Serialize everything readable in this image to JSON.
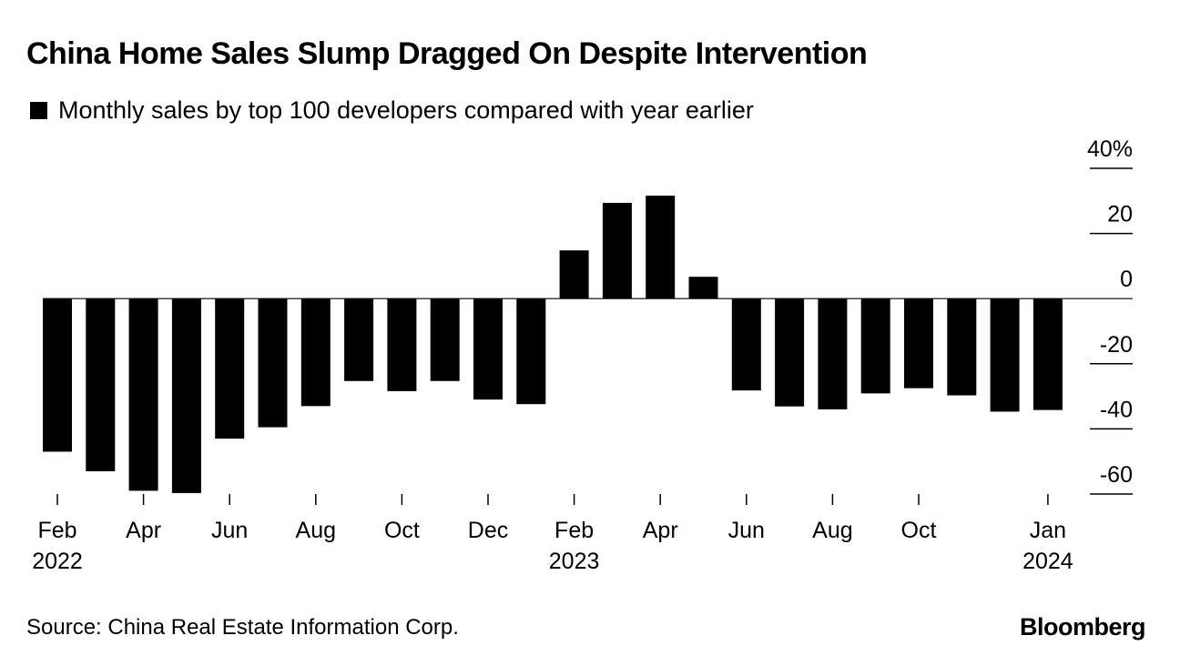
{
  "header": {
    "title": "China Home Sales Slump Dragged On Despite Intervention"
  },
  "footer": {
    "source": "Source: China Real Estate Information Corp.",
    "logo": "Bloomberg"
  },
  "colors": {
    "bars": "#000000",
    "background": "#ffffff"
  },
  "chart_data": {
    "type": "bar",
    "title": "China Home Sales Slump Dragged On Despite Intervention",
    "legend": [
      "Monthly sales by top 100 developers compared with year earlier"
    ],
    "legend_position": "top-left",
    "y_axis_position": "right",
    "categories": [
      "Feb 2022",
      "Mar 2022",
      "Apr 2022",
      "May 2022",
      "Jun 2022",
      "Jul 2022",
      "Aug 2022",
      "Sep 2022",
      "Oct 2022",
      "Nov 2022",
      "Dec 2022",
      "Jan 2023",
      "Feb 2023",
      "Mar 2023",
      "Apr 2023",
      "May 2023",
      "Jun 2023",
      "Jul 2023",
      "Aug 2023",
      "Sep 2023",
      "Oct 2023",
      "Nov 2023",
      "Dec 2023",
      "Jan 2024"
    ],
    "series": [
      {
        "name": "Monthly sales by top 100 developers compared with year earlier",
        "values": [
          -47,
          -53,
          -59,
          -59.7,
          -43,
          -39.5,
          -33,
          -25.3,
          -28.4,
          -25.3,
          -31,
          -32.4,
          14.8,
          29.4,
          31.6,
          6.7,
          -28.2,
          -33.1,
          -34,
          -29.1,
          -27.5,
          -29.7,
          -34.7,
          -34.2
        ]
      }
    ],
    "ylim": [
      -60,
      40
    ],
    "yticks": [
      40,
      20,
      0,
      -20,
      -40,
      -60
    ],
    "ytick_labels": [
      "40%",
      "20",
      "0",
      "-20",
      "-40",
      "-60"
    ],
    "xticks": [
      {
        "index": 0,
        "label": "Feb",
        "sublabel": "2022"
      },
      {
        "index": 2,
        "label": "Apr",
        "sublabel": ""
      },
      {
        "index": 4,
        "label": "Jun",
        "sublabel": ""
      },
      {
        "index": 6,
        "label": "Aug",
        "sublabel": ""
      },
      {
        "index": 8,
        "label": "Oct",
        "sublabel": ""
      },
      {
        "index": 10,
        "label": "Dec",
        "sublabel": ""
      },
      {
        "index": 12,
        "label": "Feb",
        "sublabel": "2023"
      },
      {
        "index": 14,
        "label": "Apr",
        "sublabel": ""
      },
      {
        "index": 16,
        "label": "Jun",
        "sublabel": ""
      },
      {
        "index": 18,
        "label": "Aug",
        "sublabel": ""
      },
      {
        "index": 20,
        "label": "Oct",
        "sublabel": ""
      },
      {
        "index": 23,
        "label": "Jan",
        "sublabel": "2024"
      }
    ],
    "xlabel": "",
    "ylabel": "",
    "grid": false
  }
}
